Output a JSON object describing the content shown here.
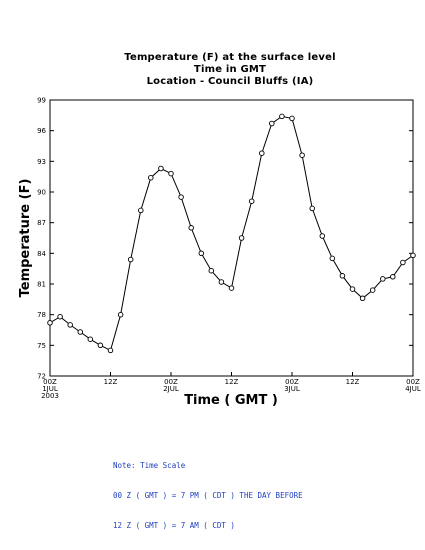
{
  "title_lines": [
    "Temperature (F) at the surface level",
    "Time in GMT",
    "Location - Council Bluffs (IA)"
  ],
  "note_lines": [
    "Note: Time Scale",
    "00 Z ( GMT ) = 7 PM ( CDT ) THE DAY BEFORE",
    "12 Z ( GMT ) = 7 AM ( CDT )"
  ],
  "chart_data": {
    "type": "line",
    "title": "Temperature (F) at the surface level",
    "subtitle": "Time in GMT / Location - Council Bluffs (IA)",
    "xlabel": "Time ( GMT )",
    "ylabel": "Temperature (F)",
    "ylim": [
      72,
      99
    ],
    "xlim": [
      0,
      72
    ],
    "grid": false,
    "yticks": [
      72,
      75,
      78,
      81,
      84,
      87,
      90,
      93,
      96,
      99
    ],
    "xticks": [
      {
        "x": 0,
        "label": "00Z",
        "sub": [
          "1JUL",
          "2003"
        ]
      },
      {
        "x": 12,
        "label": "12Z",
        "sub": []
      },
      {
        "x": 24,
        "label": "00Z",
        "sub": [
          "2JUL"
        ]
      },
      {
        "x": 36,
        "label": "12Z",
        "sub": []
      },
      {
        "x": 48,
        "label": "00Z",
        "sub": [
          "3JUL"
        ]
      },
      {
        "x": 60,
        "label": "12Z",
        "sub": []
      },
      {
        "x": 72,
        "label": "00Z",
        "sub": [
          "4JUL"
        ]
      }
    ],
    "series": [
      {
        "x": [
          0,
          2,
          4,
          6,
          8,
          10,
          12,
          14,
          16,
          18,
          20,
          22,
          24,
          26,
          28,
          30,
          32,
          34,
          36,
          38,
          40,
          42,
          44,
          46,
          48,
          50,
          52,
          54,
          56,
          58,
          60,
          62,
          64,
          66,
          68,
          70,
          72
        ],
        "values": [
          77.2,
          77.8,
          77.0,
          76.3,
          75.6,
          75.0,
          74.5,
          78.0,
          83.4,
          88.2,
          91.4,
          92.3,
          91.8,
          89.5,
          86.5,
          84.0,
          82.3,
          81.2,
          80.6,
          85.5,
          89.1,
          93.8,
          96.7,
          97.4,
          97.2,
          93.6,
          88.4,
          85.7,
          83.5,
          81.8,
          80.5,
          79.6,
          80.4,
          81.5,
          81.7,
          83.1,
          83.8
        ]
      }
    ]
  }
}
